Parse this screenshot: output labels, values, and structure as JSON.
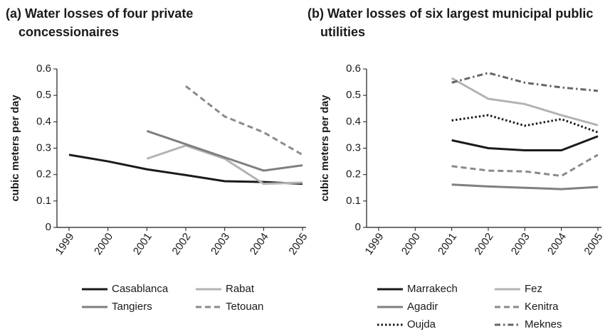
{
  "chart_data": [
    {
      "type": "line",
      "title": "(a) Water losses of four private concessionaires",
      "ylabel": "cubic meters per day",
      "categories": [
        "1999",
        "2000",
        "2001",
        "2002",
        "2003",
        "2004",
        "2005"
      ],
      "ylim": [
        0,
        0.6
      ],
      "yticks": [
        0,
        0.1,
        0.2,
        0.3,
        0.4,
        0.5,
        0.6
      ],
      "series": [
        {
          "name": "Casablanca",
          "color": "#1a1a1a",
          "dash": "solid",
          "values": [
            0.275,
            0.25,
            0.22,
            0.198,
            0.175,
            0.172,
            0.165
          ]
        },
        {
          "name": "Rabat",
          "color": "#b3b3b3",
          "dash": "solid",
          "values": [
            null,
            null,
            0.26,
            0.31,
            0.26,
            0.165,
            0.17
          ]
        },
        {
          "name": "Tangiers",
          "color": "#7f7f7f",
          "dash": "solid",
          "values": [
            null,
            null,
            0.365,
            0.315,
            0.265,
            0.215,
            0.235
          ]
        },
        {
          "name": "Tetouan",
          "color": "#8a8a8a",
          "dash": "dashed",
          "values": [
            null,
            null,
            null,
            0.535,
            0.42,
            0.36,
            0.275
          ]
        }
      ]
    },
    {
      "type": "line",
      "title": "(b) Water losses of six largest municipal public utilities",
      "ylabel": "cubic meters per day",
      "categories": [
        "1999",
        "2000",
        "2001",
        "2002",
        "2003",
        "2004",
        "2005"
      ],
      "ylim": [
        0,
        0.6
      ],
      "yticks": [
        0,
        0.1,
        0.2,
        0.3,
        0.4,
        0.5,
        0.6
      ],
      "series": [
        {
          "name": "Marrakech",
          "color": "#1a1a1a",
          "dash": "solid",
          "values": [
            null,
            null,
            0.33,
            0.3,
            0.292,
            0.292,
            0.345
          ]
        },
        {
          "name": "Fez",
          "color": "#b3b3b3",
          "dash": "solid",
          "values": [
            null,
            null,
            0.565,
            0.487,
            0.467,
            0.425,
            0.387
          ]
        },
        {
          "name": "Agadir",
          "color": "#7f7f7f",
          "dash": "solid",
          "values": [
            null,
            null,
            0.162,
            0.155,
            0.15,
            0.145,
            0.153
          ]
        },
        {
          "name": "Kenitra",
          "color": "#8a8a8a",
          "dash": "dashed",
          "values": [
            null,
            null,
            0.232,
            0.215,
            0.212,
            0.195,
            0.275
          ]
        },
        {
          "name": "Oujda",
          "color": "#1a1a1a",
          "dash": "dotted",
          "values": [
            null,
            null,
            0.405,
            0.425,
            0.385,
            0.41,
            0.36
          ]
        },
        {
          "name": "Meknes",
          "color": "#666666",
          "dash": "dashdot",
          "values": [
            null,
            null,
            0.548,
            0.585,
            0.548,
            0.53,
            0.517
          ]
        }
      ]
    }
  ]
}
